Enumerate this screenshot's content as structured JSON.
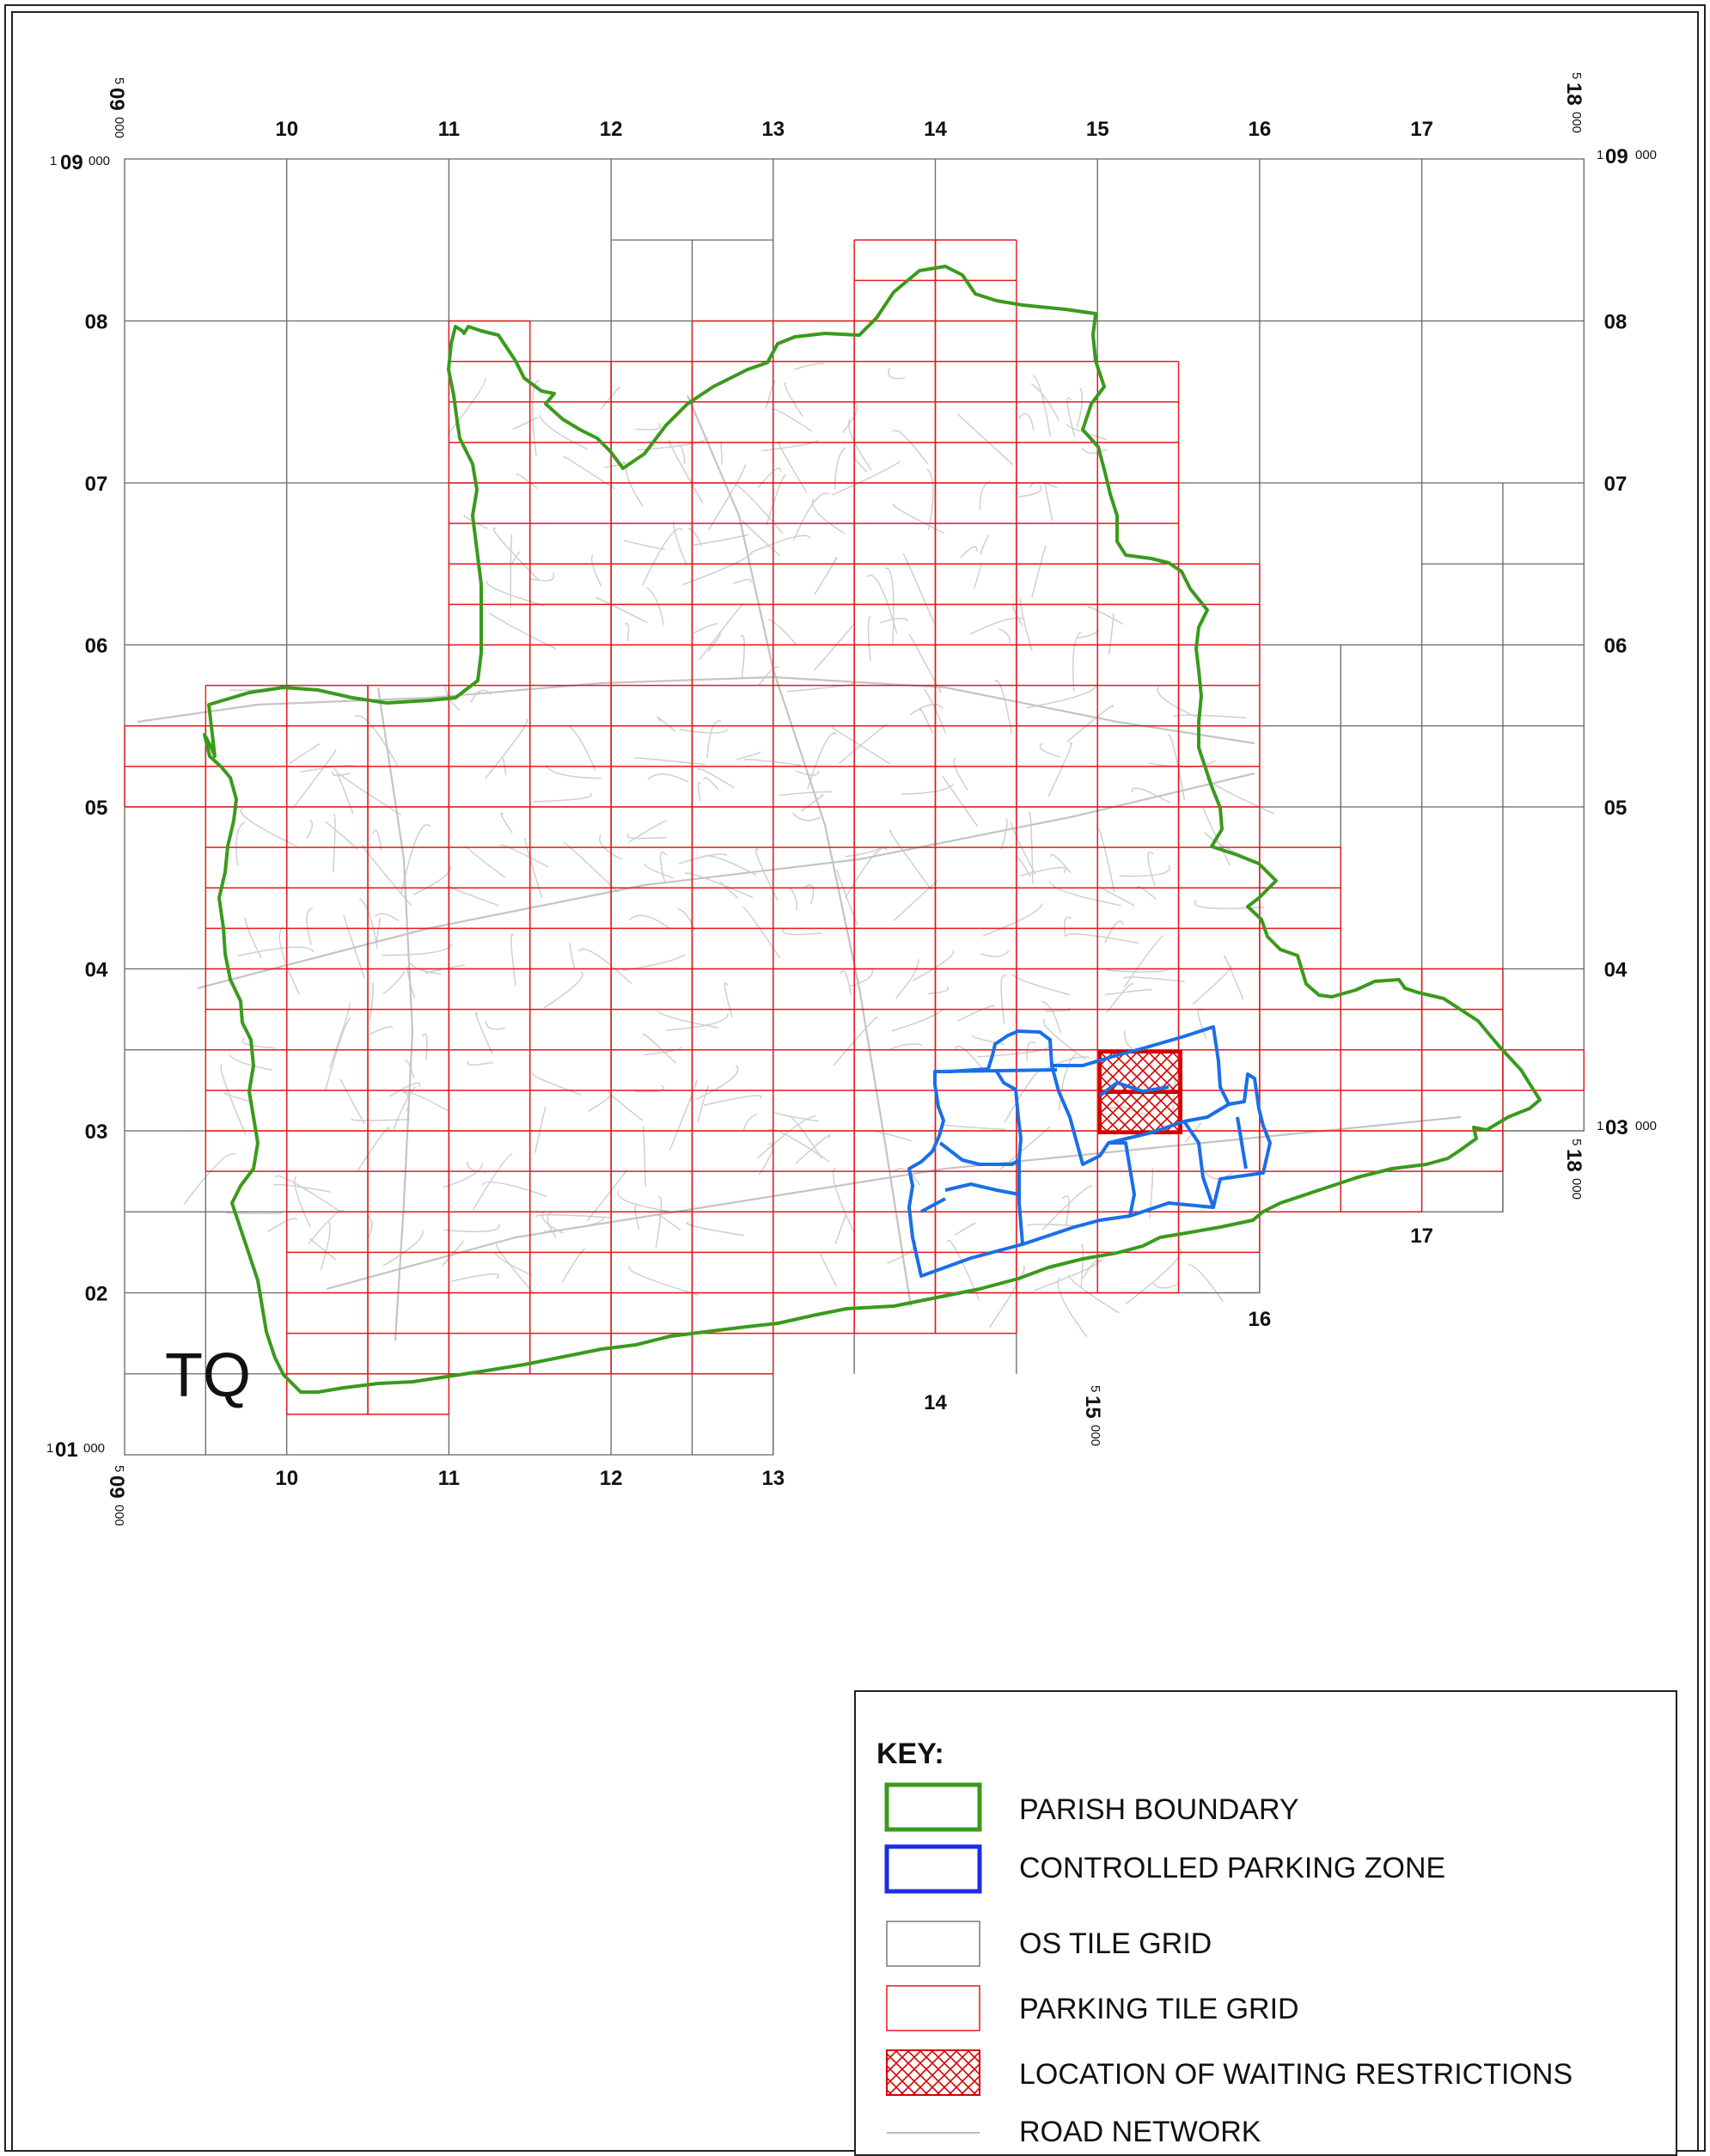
{
  "map": {
    "grid_label": "TQ",
    "column_labels_top": [
      "10",
      "11",
      "12",
      "13",
      "14",
      "15",
      "16",
      "17"
    ],
    "column_labels_bottom": [
      "10",
      "11",
      "12",
      "13"
    ],
    "row_labels_left": [
      "08",
      "07",
      "06",
      "05",
      "04",
      "03",
      "02"
    ],
    "row_labels_right": [
      "08",
      "07",
      "06",
      "05",
      "04"
    ],
    "extra_labels_lower_right": [
      "14",
      "16",
      "17"
    ],
    "corners": {
      "top_left_northing": {
        "prefix": "1",
        "main": "09",
        "suffix": "000"
      },
      "top_right_northing": {
        "prefix": "1",
        "main": "09",
        "suffix": "000"
      },
      "bottom_left_northing": {
        "prefix": "1",
        "main": "01",
        "suffix": "000"
      },
      "right_03_northing": {
        "prefix": "1",
        "main": "03",
        "suffix": "000"
      },
      "top_left_easting": {
        "prefix": "5",
        "main": "09",
        "suffix": "000"
      },
      "top_right_easting": {
        "prefix": "5",
        "main": "18",
        "suffix": "000"
      },
      "bottom_left_easting": {
        "prefix": "5",
        "main": "09",
        "suffix": "000"
      },
      "bottom_15_easting": {
        "prefix": "5",
        "main": "15",
        "suffix": "000"
      },
      "right_18_easting": {
        "prefix": "5",
        "main": "18",
        "suffix": "000"
      }
    },
    "colors": {
      "parish": "#3a9a1c",
      "cpz": "#1a6ee8",
      "os_grid": "#666666",
      "parking_grid": "#e8171c",
      "restriction": "#d40000",
      "road": "#cfcfcf"
    }
  },
  "key": {
    "title": "KEY:",
    "items": [
      {
        "label": "PARISH BOUNDARY",
        "swatch": "parish-boundary"
      },
      {
        "label": "CONTROLLED PARKING ZONE",
        "swatch": "controlled-parking-zone"
      },
      {
        "label": "OS TILE GRID",
        "swatch": "os-tile-grid"
      },
      {
        "label": "PARKING TILE GRID",
        "swatch": "parking-tile-grid"
      },
      {
        "label": "LOCATION OF WAITING RESTRICTIONS",
        "swatch": "waiting-restrictions"
      },
      {
        "label": "ROAD NETWORK",
        "swatch": "road-network"
      }
    ]
  }
}
